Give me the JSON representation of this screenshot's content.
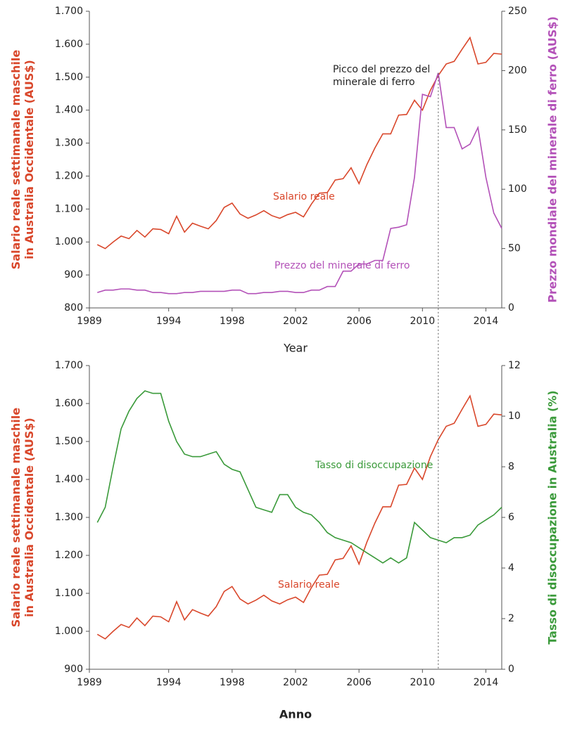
{
  "chart_data": [
    {
      "type": "line",
      "xlabel": "Year",
      "ylabel": [
        "Salario reale settimanale maschile",
        "in Australia Occidentale (AUS$)"
      ],
      "y2label": "Prezzo mondiale del minerale di ferro (AUS$)",
      "annotation": [
        "Picco del prezzo del",
        "minerale di ferro"
      ],
      "xlim": [
        1989,
        2015
      ],
      "xticks": [
        1989,
        1994,
        1998,
        2002,
        2006,
        2010,
        2014
      ],
      "ylim": [
        800,
        1700
      ],
      "yticks": [
        {
          "value": 800,
          "label": "800"
        },
        {
          "value": 900,
          "label": "900"
        },
        {
          "value": 1000,
          "label": "1.000"
        },
        {
          "value": 1100,
          "label": "1.100"
        },
        {
          "value": 1200,
          "label": "1.200"
        },
        {
          "value": 1300,
          "label": "1.300"
        },
        {
          "value": 1400,
          "label": "1.400"
        },
        {
          "value": 1500,
          "label": "1.500"
        },
        {
          "value": 1600,
          "label": "1.600"
        },
        {
          "value": 1700,
          "label": "1.700"
        }
      ],
      "y2lim": [
        0,
        250
      ],
      "y2ticks": [
        0,
        50,
        100,
        150,
        200,
        250
      ],
      "x": [
        1989.5,
        1990,
        1990.5,
        1991,
        1991.5,
        1992,
        1992.5,
        1993,
        1993.5,
        1994,
        1994.5,
        1995,
        1995.5,
        1996,
        1996.5,
        1997,
        1997.5,
        1998,
        1998.5,
        1999,
        1999.5,
        2000,
        2000.5,
        2001,
        2001.5,
        2002,
        2002.5,
        2003,
        2003.5,
        2004,
        2004.5,
        2005,
        2005.5,
        2006,
        2006.5,
        2007,
        2007.5,
        2008,
        2008.5,
        2009,
        2009.5,
        2010,
        2010.5,
        2011,
        2011.5,
        2012,
        2012.5,
        2013,
        2013.5,
        2014,
        2014.5,
        2015
      ],
      "series": [
        {
          "name": "Salario reale",
          "color": "#d9472b",
          "axis": "y",
          "values": [
            992,
            980,
            1000,
            1018,
            1010,
            1035,
            1015,
            1040,
            1038,
            1025,
            1078,
            1030,
            1057,
            1048,
            1040,
            1065,
            1105,
            1118,
            1085,
            1072,
            1082,
            1095,
            1080,
            1072,
            1083,
            1090,
            1076,
            1115,
            1148,
            1150,
            1188,
            1192,
            1225,
            1177,
            1235,
            1285,
            1328,
            1328,
            1385,
            1387,
            1430,
            1400,
            1460,
            1505,
            1540,
            1548,
            1585,
            1620,
            1540,
            1545,
            1572,
            1570
          ]
        },
        {
          "name": "Prezzo del minerale di ferro",
          "color": "#b351b8",
          "axis": "y2",
          "values": [
            13,
            15,
            15,
            16,
            16,
            15,
            15,
            13,
            13,
            12,
            12,
            13,
            13,
            14,
            14,
            14,
            14,
            15,
            15,
            12,
            12,
            13,
            13,
            14,
            14,
            13,
            13,
            15,
            15,
            18,
            18,
            31,
            31,
            37,
            37,
            40,
            40,
            67,
            68,
            70,
            110,
            180,
            178,
            198,
            152,
            152,
            134,
            138,
            152,
            110,
            80,
            67
          ]
        }
      ]
    },
    {
      "type": "line",
      "xlabel": "Anno",
      "ylabel": [
        "Salario reale settimanale maschile",
        "in Australia Occidentale (AUS$)"
      ],
      "y2label": "Tasso di disoccupazione in Australia (%)",
      "xlim": [
        1989,
        2015
      ],
      "xticks": [
        1989,
        1994,
        1998,
        2002,
        2006,
        2010,
        2014
      ],
      "ylim": [
        900,
        1700
      ],
      "yticks": [
        {
          "value": 900,
          "label": "900"
        },
        {
          "value": 1000,
          "label": "1.000"
        },
        {
          "value": 1100,
          "label": "1.100"
        },
        {
          "value": 1200,
          "label": "1.200"
        },
        {
          "value": 1300,
          "label": "1.300"
        },
        {
          "value": 1400,
          "label": "1.400"
        },
        {
          "value": 1500,
          "label": "1.500"
        },
        {
          "value": 1600,
          "label": "1.600"
        },
        {
          "value": 1700,
          "label": "1.700"
        }
      ],
      "y2lim": [
        0,
        12
      ],
      "y2ticks": [
        0,
        2,
        4,
        6,
        8,
        10,
        12
      ],
      "x": [
        1989.5,
        1990,
        1990.5,
        1991,
        1991.5,
        1992,
        1992.5,
        1993,
        1993.5,
        1994,
        1994.5,
        1995,
        1995.5,
        1996,
        1996.5,
        1997,
        1997.5,
        1998,
        1998.5,
        1999,
        1999.5,
        2000,
        2000.5,
        2001,
        2001.5,
        2002,
        2002.5,
        2003,
        2003.5,
        2004,
        2004.5,
        2005,
        2005.5,
        2006,
        2006.5,
        2007,
        2007.5,
        2008,
        2008.5,
        2009,
        2009.5,
        2010,
        2010.5,
        2011,
        2011.5,
        2012,
        2012.5,
        2013,
        2013.5,
        2014,
        2014.5,
        2015
      ],
      "series": [
        {
          "name": "Salario reale",
          "color": "#d9472b",
          "axis": "y",
          "values": [
            992,
            980,
            1000,
            1018,
            1010,
            1035,
            1015,
            1040,
            1038,
            1025,
            1078,
            1030,
            1057,
            1048,
            1040,
            1065,
            1105,
            1118,
            1085,
            1072,
            1082,
            1095,
            1080,
            1072,
            1083,
            1090,
            1076,
            1115,
            1148,
            1150,
            1188,
            1192,
            1225,
            1177,
            1235,
            1285,
            1328,
            1328,
            1385,
            1387,
            1430,
            1400,
            1460,
            1505,
            1540,
            1548,
            1585,
            1620,
            1540,
            1545,
            1572,
            1570
          ]
        },
        {
          "name": "Tasso di disoccupazione",
          "color": "#3a9a3a",
          "axis": "y2",
          "values": [
            5.8,
            6.4,
            8,
            9.5,
            10.2,
            10.7,
            11,
            10.9,
            10.9,
            9.8,
            9,
            8.5,
            8.4,
            8.4,
            8.5,
            8.6,
            8.1,
            7.9,
            7.8,
            7.1,
            6.4,
            6.3,
            6.2,
            6.9,
            6.9,
            6.4,
            6.2,
            6.1,
            5.8,
            5.4,
            5.2,
            5.1,
            5,
            4.8,
            4.6,
            4.4,
            4.2,
            4.4,
            4.2,
            4.4,
            5.8,
            5.5,
            5.2,
            5.1,
            5,
            5.2,
            5.2,
            5.3,
            5.7,
            5.9,
            6.1,
            6.4
          ]
        }
      ]
    }
  ]
}
